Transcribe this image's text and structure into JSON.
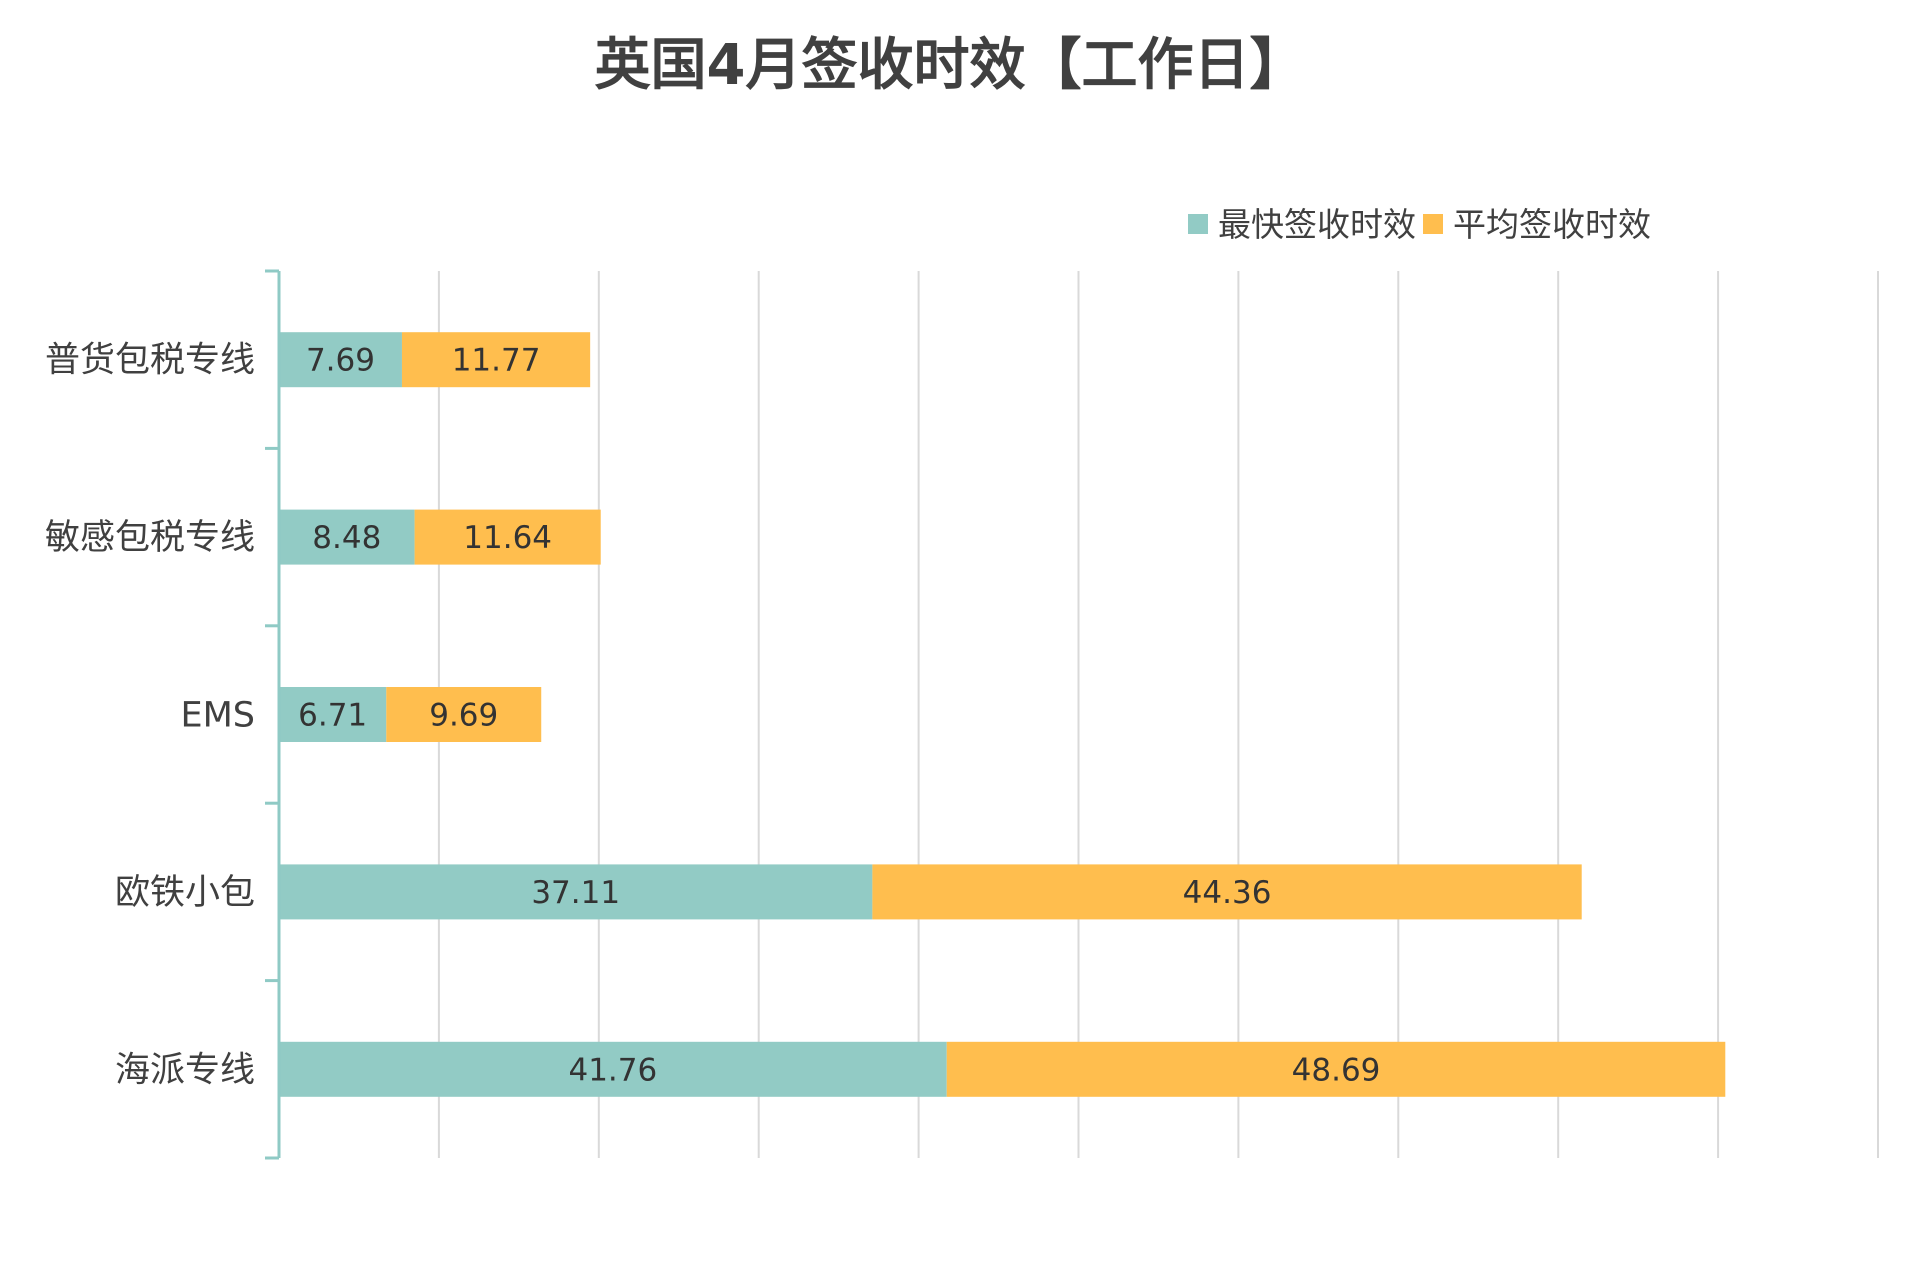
{
  "chart_data": {
    "type": "bar",
    "orientation": "horizontal",
    "stacked": true,
    "title": "英国4月签收时效【工作日】",
    "categories": [
      "普货包税专线",
      "敏感包税专线",
      "EMS",
      "欧铁小包",
      "海派专线"
    ],
    "series": [
      {
        "name": "最快签收时效",
        "color": "#92cbc5",
        "values": [
          7.69,
          8.48,
          6.71,
          37.11,
          41.76
        ],
        "labels": [
          "7.69",
          "8.48",
          "6.71",
          "37.11",
          "41.76"
        ]
      },
      {
        "name": "平均签收时效",
        "color": "#ffbe4e",
        "values": [
          11.77,
          11.64,
          9.69,
          44.36,
          48.69
        ],
        "labels": [
          "11.77",
          "11.64",
          "9.69",
          "44.36",
          "48.69"
        ]
      }
    ],
    "xlim": [
      0,
      100
    ],
    "x_gridlines": 10,
    "xlabel": "",
    "ylabel": "",
    "grid": true,
    "legend_position": "top-right",
    "axis_color": "#8fcac5",
    "grid_color": "#d9d9d9"
  }
}
